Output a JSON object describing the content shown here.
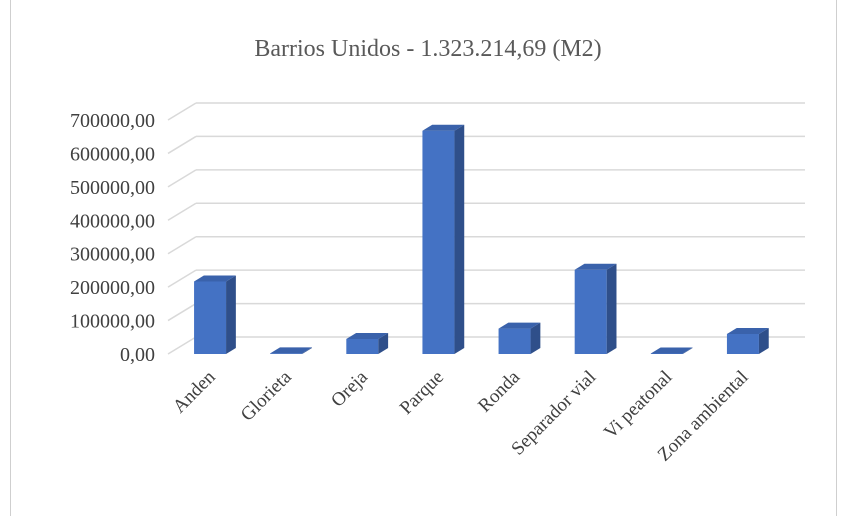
{
  "chart_data": {
    "type": "bar",
    "style": "3d-column",
    "title": "Barrios Unidos - 1.323.214,69 (M2)",
    "xlabel": "",
    "ylabel": "",
    "categories": [
      "Anden",
      "Glorieta",
      "Oreja",
      "Parque",
      "Ronda",
      "Separador vial",
      "Vi peatonal",
      "Zona ambiental"
    ],
    "values": [
      217000,
      2000,
      45000,
      668000,
      76000,
      252000,
      1500,
      60000
    ],
    "ylim": [
      0,
      700000
    ],
    "yticks": [
      0,
      100000,
      200000,
      300000,
      400000,
      500000,
      600000,
      700000
    ],
    "ytick_labels": [
      "0,00",
      "100000,00",
      "200000,00",
      "300000,00",
      "400000,00",
      "500000,00",
      "600000,00",
      "700000,00"
    ],
    "grid": true,
    "legend": "none",
    "colors": {
      "bar_front": "#4472c4",
      "bar_side": "#2f4f8a",
      "bar_top": "#3a62ab",
      "gridline": "#d9d9d9",
      "text": "#404040",
      "title": "#595959"
    }
  }
}
